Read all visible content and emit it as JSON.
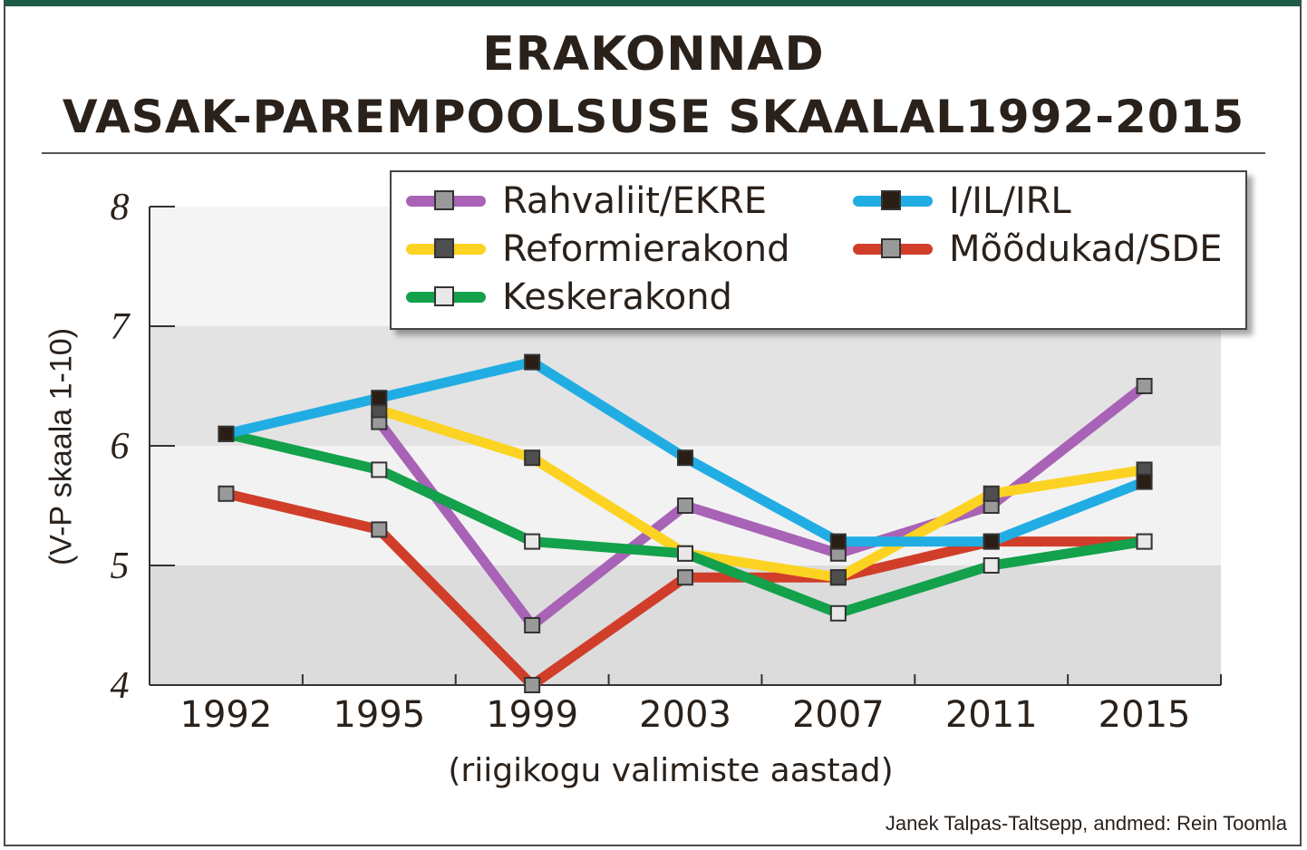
{
  "title_line1": "ERAKONNAD",
  "title_line2": "VASAK-PAREMPOOLSUSE SKAALAL1992-2015",
  "credit": "Janek Talpas-Taltsepp, andmed: Rein Toomla",
  "chart_data": {
    "type": "line",
    "title": "ERAKONNAD VASAK-PAREMPOOLSUSE SKAALAL1992-2015",
    "xlabel": "(riigikogu valimiste aastad)",
    "ylabel": "(V-P skaala 1-10)",
    "ylim": [
      4,
      8
    ],
    "yticks": [
      "4",
      "5",
      "6",
      "7",
      "8"
    ],
    "categories": [
      "1992",
      "1995",
      "1999",
      "2003",
      "2007",
      "2011",
      "2015"
    ],
    "legend_position": "top-right",
    "series": [
      {
        "name": "Rahvaliit/EKRE",
        "color": "#a862b6",
        "marker": "#999999",
        "values": [
          null,
          6.2,
          4.5,
          5.5,
          5.1,
          5.5,
          6.5
        ]
      },
      {
        "name": "Reformierakond",
        "color": "#fcd322",
        "marker": "#4f4f4f",
        "values": [
          null,
          6.3,
          5.9,
          5.1,
          4.9,
          5.6,
          5.8
        ]
      },
      {
        "name": "Keskerakond",
        "color": "#13a14b",
        "marker": "#e8e8e8",
        "values": [
          6.1,
          5.8,
          5.2,
          5.1,
          4.6,
          5.0,
          5.2
        ]
      },
      {
        "name": "I/IL/IRL",
        "color": "#21ade3",
        "marker": "#2a1e15",
        "values": [
          6.1,
          6.4,
          6.7,
          5.9,
          5.2,
          5.2,
          5.7
        ]
      },
      {
        "name": "Mõõdukad/SDE",
        "color": "#d03e2a",
        "marker": "#999999",
        "values": [
          5.6,
          5.3,
          4.0,
          4.9,
          4.9,
          5.2,
          5.2
        ]
      }
    ]
  }
}
